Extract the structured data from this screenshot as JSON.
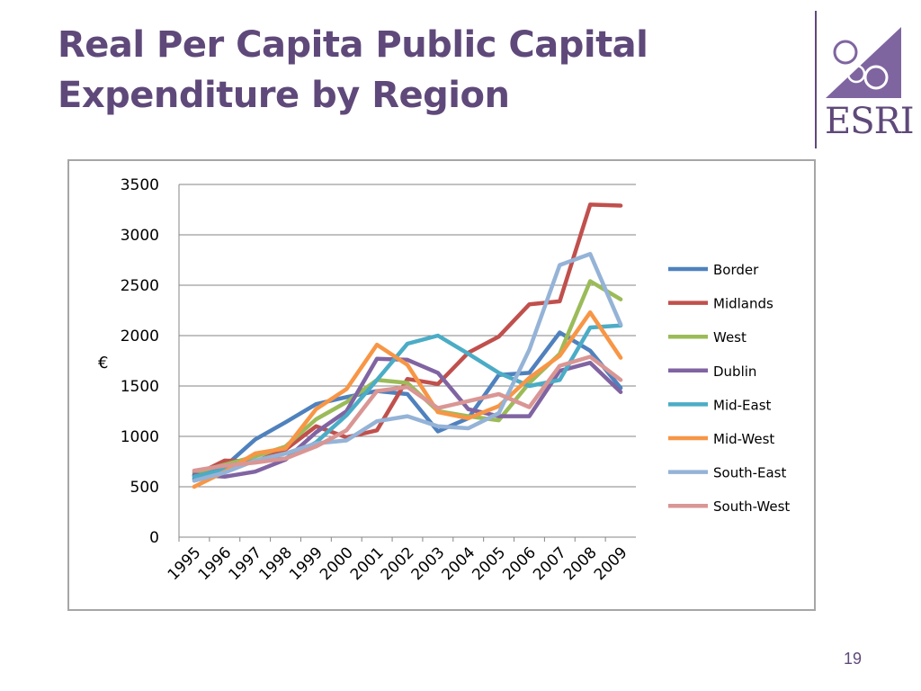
{
  "slide": {
    "title_line1": "Real Per Capita Public Capital",
    "title_line2": "Expenditure by Region",
    "logo_text": "ESRI",
    "page_number": "19",
    "accent_color": "#5f497a"
  },
  "chart_data": {
    "type": "line",
    "title": "",
    "xlabel": "",
    "ylabel": "€",
    "ylim": [
      0,
      3500
    ],
    "yticks": [
      "0",
      "500",
      "1000",
      "1500",
      "2000",
      "2500",
      "3000",
      "3500"
    ],
    "categories": [
      "1995",
      "1996",
      "1997",
      "1998",
      "1999",
      "2000",
      "2001",
      "2002",
      "2003",
      "2004",
      "2005",
      "2006",
      "2007",
      "2008",
      "2009"
    ],
    "grid": "horizontal",
    "legend_position": "right",
    "series": [
      {
        "name": "Border",
        "color": "#4f81bd",
        "values": [
          580,
          700,
          970,
          1140,
          1320,
          1390,
          1450,
          1420,
          1050,
          1180,
          1610,
          1630,
          2030,
          1850,
          1480
        ]
      },
      {
        "name": "Midlands",
        "color": "#c0504d",
        "values": [
          610,
          760,
          750,
          870,
          1100,
          990,
          1060,
          1570,
          1520,
          1830,
          1990,
          2310,
          2340,
          3300,
          3290
        ]
      },
      {
        "name": "West",
        "color": "#9bbb59",
        "values": [
          640,
          720,
          800,
          900,
          1170,
          1340,
          1560,
          1530,
          1250,
          1200,
          1160,
          1530,
          1820,
          2540,
          2360
        ]
      },
      {
        "name": "Dublin",
        "color": "#8064a2",
        "values": [
          620,
          600,
          650,
          770,
          1040,
          1250,
          1770,
          1760,
          1630,
          1270,
          1200,
          1200,
          1650,
          1730,
          1440
        ]
      },
      {
        "name": "Mid-East",
        "color": "#4bacc6",
        "values": [
          600,
          670,
          760,
          780,
          940,
          1210,
          1560,
          1920,
          2000,
          1820,
          1630,
          1500,
          1560,
          2080,
          2100
        ]
      },
      {
        "name": "Mid-West",
        "color": "#f79646",
        "values": [
          500,
          650,
          830,
          880,
          1270,
          1470,
          1910,
          1710,
          1240,
          1180,
          1300,
          1580,
          1800,
          2230,
          1780
        ]
      },
      {
        "name": "South-East",
        "color": "#95b3d7",
        "values": [
          560,
          640,
          760,
          830,
          930,
          960,
          1150,
          1200,
          1100,
          1080,
          1230,
          1860,
          2700,
          2810,
          2110
        ]
      },
      {
        "name": "South-West",
        "color": "#d99694",
        "values": [
          660,
          710,
          740,
          780,
          900,
          1060,
          1450,
          1490,
          1280,
          1350,
          1420,
          1290,
          1700,
          1790,
          1560
        ]
      }
    ]
  }
}
